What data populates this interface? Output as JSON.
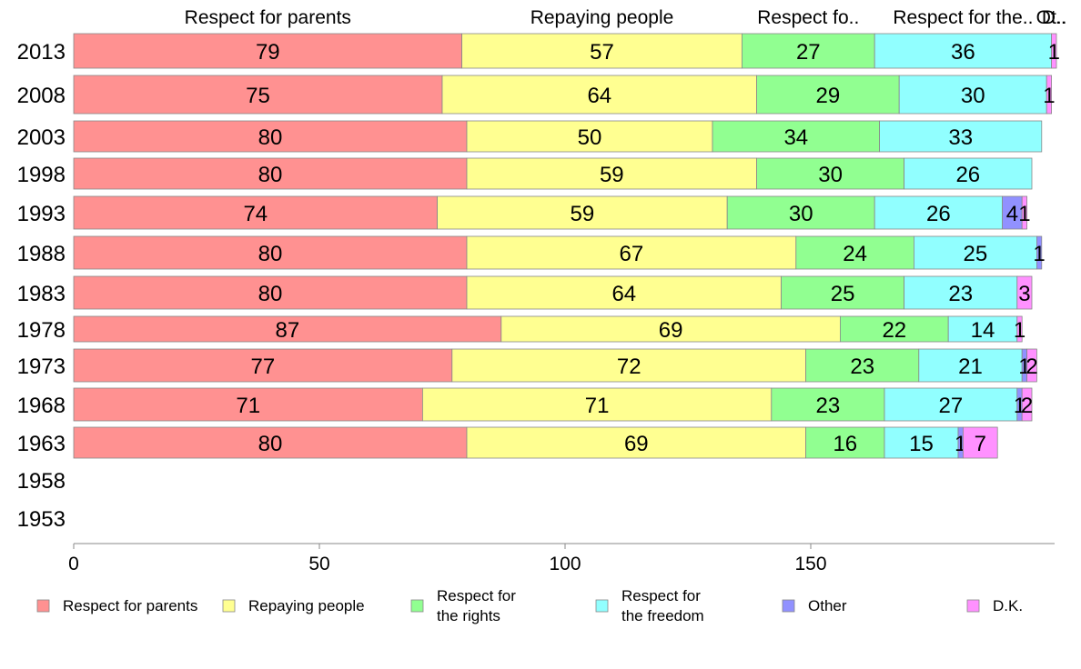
{
  "chart_data": {
    "type": "bar",
    "orientation": "horizontal",
    "stacked": true,
    "categories": [
      "2013",
      "2008",
      "2003",
      "1998",
      "1993",
      "1988",
      "1983",
      "1978",
      "1973",
      "1968",
      "1963",
      "1958",
      "1953"
    ],
    "series": [
      {
        "name": "Respect for parents",
        "header": "Respect for parents",
        "color": "#ff9191",
        "values": [
          79,
          75,
          80,
          80,
          74,
          80,
          80,
          87,
          77,
          71,
          80,
          null,
          null
        ]
      },
      {
        "name": "Repaying people",
        "header": "Repaying people",
        "color": "#ffff91",
        "values": [
          57,
          64,
          50,
          59,
          59,
          67,
          64,
          69,
          72,
          71,
          69,
          null,
          null
        ]
      },
      {
        "name": "Respect for the rights",
        "header": "Respect fo..",
        "color": "#91ff91",
        "values": [
          27,
          29,
          34,
          30,
          30,
          24,
          25,
          22,
          23,
          23,
          16,
          null,
          null
        ]
      },
      {
        "name": "Respect for the freedom",
        "header": "Respect for the..",
        "color": "#91ffff",
        "values": [
          36,
          30,
          33,
          26,
          26,
          25,
          23,
          14,
          21,
          27,
          15,
          null,
          null
        ]
      },
      {
        "name": "Other",
        "header": "Ot..",
        "color": "#9191ff",
        "values": [
          0,
          0,
          0,
          0,
          4,
          1,
          0,
          0,
          1,
          1,
          1,
          null,
          null
        ]
      },
      {
        "name": "D.K.",
        "header": "D..",
        "color": "#ff91ff",
        "values": [
          1,
          1,
          0,
          0,
          1,
          0,
          3,
          1,
          2,
          2,
          7,
          null,
          null
        ]
      }
    ],
    "segment_labels": [
      [
        "79",
        "57",
        "27",
        "36",
        "",
        "1"
      ],
      [
        "75",
        "64",
        "29",
        "30",
        "",
        "1"
      ],
      [
        "80",
        "50",
        "34",
        "33",
        "",
        ""
      ],
      [
        "80",
        "59",
        "30",
        "26",
        "",
        ""
      ],
      [
        "74",
        "59",
        "30",
        "26",
        "4",
        "1"
      ],
      [
        "80",
        "67",
        "24",
        "25",
        "1",
        ""
      ],
      [
        "80",
        "64",
        "25",
        "23",
        "",
        "3"
      ],
      [
        "87",
        "69",
        "22",
        "14",
        "",
        "1"
      ],
      [
        "77",
        "72",
        "23",
        "21",
        "1",
        "2"
      ],
      [
        "71",
        "71",
        "23",
        "27",
        "1",
        "2"
      ],
      [
        "80",
        "69",
        "16",
        "15",
        "1",
        "7"
      ],
      [
        "",
        "",
        "",
        "",
        "",
        ""
      ],
      [
        "",
        "",
        "",
        "",
        "",
        ""
      ]
    ],
    "legend": [
      [
        "Respect for parents"
      ],
      [
        "Repaying people"
      ],
      [
        "Respect for",
        "the rights"
      ],
      [
        "Respect for",
        "the freedom"
      ],
      [
        "Other"
      ],
      [
        "D.K."
      ]
    ],
    "xlim": [
      0,
      200
    ],
    "xticks": [
      0,
      50,
      100,
      150
    ],
    "legend_position": "bottom",
    "grid": false
  }
}
